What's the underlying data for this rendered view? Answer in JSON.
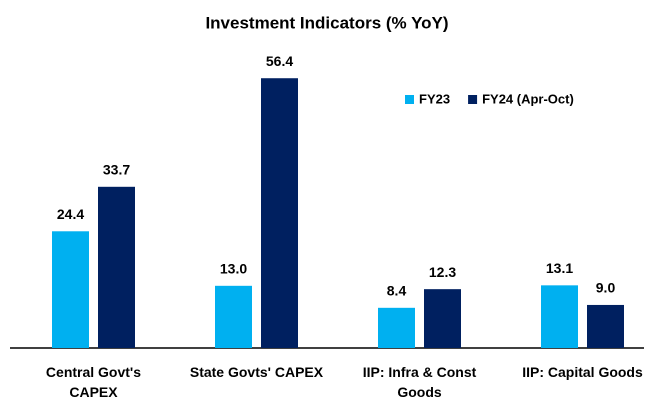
{
  "chart_data": {
    "type": "bar",
    "title": "Investment Indicators (% YoY)",
    "categories": [
      "Central Govt's CAPEX",
      "State Govts' CAPEX",
      "IIP: Infra & Const Goods",
      "IIP: Capital Goods"
    ],
    "series": [
      {
        "name": "FY23",
        "color": "#00b0f0",
        "values": [
          24.4,
          13.0,
          8.4,
          13.1
        ],
        "value_labels": [
          "24.4",
          "13.0",
          "8.4",
          "13.1"
        ]
      },
      {
        "name": "FY24 (Apr-Oct)",
        "color": "#002060",
        "values": [
          33.7,
          56.4,
          12.3,
          9.0
        ],
        "value_labels": [
          "33.7",
          "56.4",
          "12.3",
          "9.0"
        ]
      }
    ],
    "ylim": [
      0,
      60
    ],
    "legend": "upper right",
    "grid": false
  }
}
